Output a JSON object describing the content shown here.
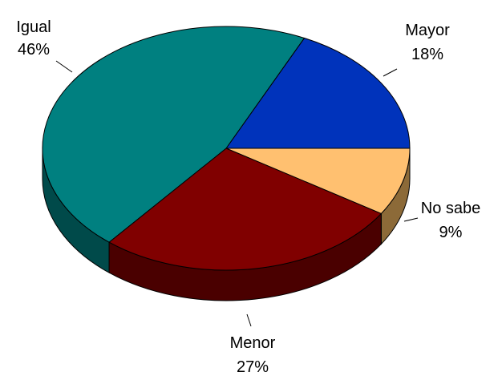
{
  "chart_data": {
    "type": "pie",
    "categories": [
      "Mayor",
      "No sabe",
      "Menor",
      "Igual"
    ],
    "values": [
      18,
      9,
      27,
      46
    ],
    "value_labels": [
      "18%",
      "9%",
      "27%",
      "46%"
    ],
    "colors": [
      "#0033bb",
      "#ffc070",
      "#800000",
      "#008080"
    ],
    "side_colors": [
      "#001a66",
      "#8c6a38",
      "#4a0000",
      "#004a4a"
    ]
  }
}
